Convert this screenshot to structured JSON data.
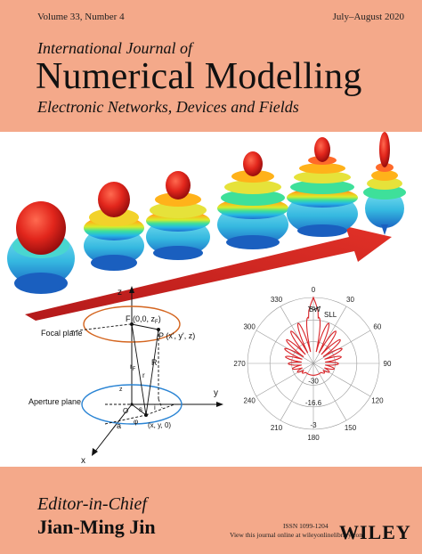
{
  "header": {
    "volume": "Volume 33, Number 4",
    "date": "July–August 2020"
  },
  "journal": {
    "prefix": "International Journal of",
    "title": "Numerical Modelling",
    "subtitle": "Electronic Networks, Devices and Fields"
  },
  "diagram": {
    "focal_plane_label": "Focal plane",
    "aperture_plane_label": "Aperture plane",
    "axis_z": "z",
    "axis_y": "y",
    "axis_x": "x",
    "point_f": "F (0,0, z",
    "point_f_sub": "F",
    "point_f_close": ")",
    "point_p": "P (x', y', z)",
    "label_r": "R",
    "label_rf": "r",
    "label_rf_sub": "F",
    "label_r_small": "r",
    "label_a": "a",
    "label_s": "s",
    "label_i": "i",
    "label_q": "(x, y, 0)",
    "label_phi": "φ",
    "label_o": "O",
    "label_zt": "z"
  },
  "polar_plot": {
    "angle_labels": [
      "0",
      "30",
      "60",
      "90",
      "120",
      "150",
      "180",
      "210",
      "240",
      "270",
      "300",
      "330"
    ],
    "radial_labels": [
      "-30",
      "-16.6",
      "-3"
    ],
    "annotation_bw": "BW",
    "annotation_sll": "SLL",
    "line_color": "#d9252a"
  },
  "footer": {
    "editor_label": "Editor-in-Chief",
    "editor_name": "Jian-Ming Jin",
    "issn": "ISSN 1099-1204",
    "online_text": "View this journal online at wileyonlinelibrary.com",
    "publisher": "WILEY"
  },
  "colors": {
    "band": "#f4a98a",
    "arrow": "#c8201e"
  }
}
